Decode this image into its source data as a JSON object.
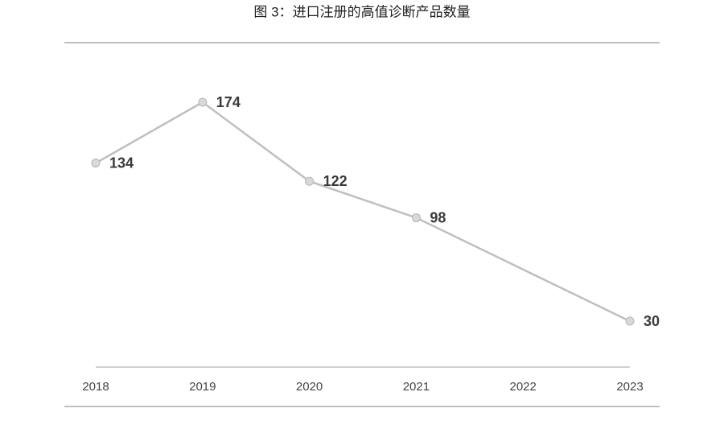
{
  "chart_data": {
    "type": "line",
    "title": "图 3：进口注册的高值诊断产品数量",
    "x": [
      2018,
      2019,
      2020,
      2021,
      2023
    ],
    "values": [
      134,
      174,
      122,
      98,
      30
    ],
    "xlim": [
      2018,
      2023
    ],
    "xticks": [
      2018,
      2019,
      2020,
      2021,
      2022,
      2023
    ],
    "color": "#bfbfbf"
  }
}
